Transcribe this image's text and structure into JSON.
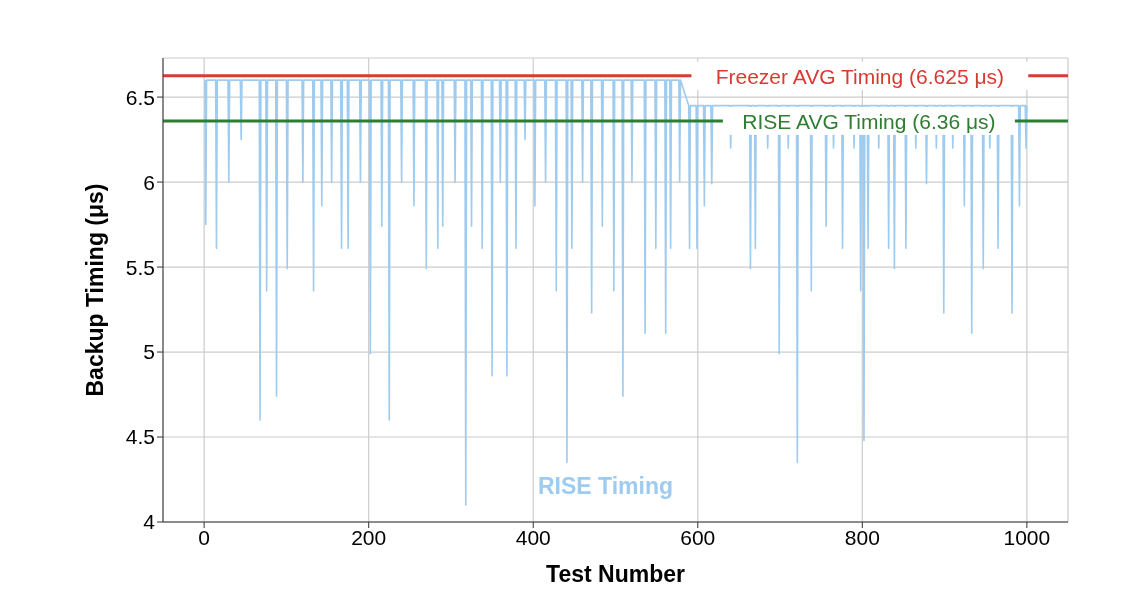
{
  "chart_data": {
    "type": "line",
    "xlabel": "Test Number",
    "ylabel": "Backup Timing (μs)",
    "xlim": [
      -50,
      1050
    ],
    "xticks": [
      0,
      200,
      400,
      600,
      800,
      1000
    ],
    "ylim": [
      4,
      6.73
    ],
    "yticks": [
      4,
      4.5,
      5,
      5.5,
      6,
      6.5
    ],
    "grid": true,
    "marker": "none",
    "line_style": "solid",
    "ref_lines": [
      {
        "axis": "y",
        "value": 6.625,
        "label": "Freezer AVG Timing (6.625 μs)",
        "color": "#d93a32"
      },
      {
        "axis": "y",
        "value": 6.36,
        "label": "RISE AVG Timing (6.36 μs)",
        "color": "#2e7d32"
      }
    ],
    "series": [
      {
        "name": "RISE Timing",
        "color": "#9ecbf0",
        "x": [
          1,
          2,
          3,
          14,
          15,
          16,
          29,
          30,
          31,
          44,
          45,
          46,
          67,
          68,
          69,
          75,
          76,
          77,
          87,
          88,
          89,
          100,
          101,
          102,
          119,
          120,
          121,
          132,
          133,
          134,
          142,
          143,
          144,
          154,
          155,
          156,
          166,
          167,
          168,
          174,
          175,
          176,
          189,
          190,
          191,
          201,
          202,
          203,
          215,
          216,
          217,
          224,
          225,
          226,
          239,
          240,
          241,
          254,
          255,
          256,
          269,
          270,
          271,
          283,
          284,
          285,
          289,
          290,
          291,
          304,
          305,
          306,
          317,
          318,
          319,
          324,
          325,
          326,
          337,
          338,
          339,
          349,
          350,
          351,
          359,
          360,
          361,
          367,
          368,
          369,
          378,
          379,
          380,
          389,
          390,
          391,
          401,
          402,
          403,
          414,
          415,
          416,
          427,
          428,
          429,
          440,
          441,
          442,
          446,
          447,
          448,
          459,
          460,
          461,
          470,
          471,
          472,
          483,
          484,
          485,
          497,
          498,
          499,
          508,
          509,
          510,
          519,
          520,
          521,
          535,
          536,
          537,
          548,
          549,
          550,
          560,
          561,
          562,
          566,
          567,
          568,
          577,
          578,
          579,
          589,
          590,
          591,
          598,
          599,
          600,
          607,
          608,
          609,
          616,
          617,
          618,
          639,
          640,
          641,
          663,
          664,
          665,
          669,
          670,
          671,
          684,
          685,
          686,
          698,
          699,
          700,
          709,
          710,
          711,
          720,
          721,
          722,
          737,
          738,
          739,
          755,
          756,
          757,
          764,
          765,
          766,
          775,
          776,
          777,
          789,
          790,
          791,
          797,
          798,
          799,
          801,
          802,
          803,
          806,
          807,
          808,
          819,
          820,
          821,
          831,
          832,
          833,
          838,
          839,
          840,
          852,
          853,
          854,
          864,
          865,
          866,
          877,
          878,
          879,
          889,
          890,
          891,
          898,
          899,
          900,
          909,
          910,
          911,
          923,
          924,
          925,
          932,
          933,
          934,
          946,
          947,
          948,
          954,
          955,
          956,
          964,
          965,
          966,
          981,
          982,
          983,
          990,
          991,
          992,
          998,
          999,
          1000
        ],
        "values": [
          6.6,
          5.75,
          6.6,
          6.6,
          5.61,
          6.6,
          6.6,
          6.0,
          6.6,
          6.6,
          6.25,
          6.6,
          6.6,
          4.6,
          6.6,
          6.6,
          5.36,
          6.6,
          6.6,
          4.74,
          6.6,
          6.6,
          5.49,
          6.6,
          6.6,
          6.0,
          6.6,
          6.6,
          5.36,
          6.6,
          6.6,
          5.86,
          6.6,
          6.6,
          6.0,
          6.6,
          6.6,
          5.61,
          6.6,
          6.6,
          5.61,
          6.6,
          6.6,
          6.0,
          6.6,
          6.6,
          4.99,
          6.6,
          6.6,
          5.74,
          6.6,
          6.6,
          4.6,
          6.6,
          6.6,
          6.0,
          6.6,
          6.6,
          5.86,
          6.6,
          6.6,
          5.49,
          6.6,
          6.6,
          5.61,
          6.6,
          6.6,
          5.74,
          6.6,
          6.6,
          6.0,
          6.6,
          6.6,
          4.1,
          6.6,
          6.6,
          5.74,
          6.6,
          6.6,
          5.61,
          6.6,
          6.6,
          4.86,
          6.6,
          6.6,
          6.0,
          6.6,
          6.6,
          4.86,
          6.6,
          6.6,
          5.61,
          6.6,
          6.6,
          6.25,
          6.6,
          6.6,
          5.86,
          6.6,
          6.6,
          6.0,
          6.6,
          6.6,
          5.36,
          6.6,
          6.6,
          4.35,
          6.6,
          6.6,
          5.61,
          6.6,
          6.6,
          6.0,
          6.6,
          6.6,
          5.23,
          6.6,
          6.6,
          5.74,
          6.6,
          6.6,
          5.36,
          6.6,
          6.6,
          4.74,
          6.6,
          6.6,
          6.0,
          6.6,
          6.6,
          5.11,
          6.6,
          6.6,
          5.61,
          6.6,
          6.6,
          5.11,
          6.6,
          6.6,
          5.61,
          6.6,
          6.6,
          6.0,
          6.6,
          6.45,
          5.61,
          6.45,
          6.45,
          5.61,
          6.45,
          6.45,
          5.86,
          6.45,
          6.45,
          5.99,
          6.45,
          6.45,
          6.2,
          6.45,
          6.45,
          5.49,
          6.45,
          6.45,
          5.61,
          6.45,
          6.45,
          6.2,
          6.45,
          6.45,
          4.99,
          6.45,
          6.45,
          6.2,
          6.45,
          6.45,
          4.35,
          6.45,
          6.45,
          5.36,
          6.45,
          6.45,
          5.74,
          6.45,
          6.45,
          6.2,
          6.45,
          6.45,
          5.61,
          6.45,
          6.45,
          6.2,
          6.45,
          6.45,
          5.36,
          6.45,
          6.45,
          4.48,
          6.45,
          6.45,
          5.61,
          6.45,
          6.45,
          6.2,
          6.45,
          6.45,
          5.61,
          6.45,
          6.45,
          5.49,
          6.45,
          6.45,
          5.61,
          6.45,
          6.45,
          6.2,
          6.45,
          6.45,
          5.99,
          6.45,
          6.45,
          6.2,
          6.45,
          6.45,
          5.23,
          6.45,
          6.45,
          6.2,
          6.45,
          6.45,
          5.86,
          6.45,
          6.45,
          5.11,
          6.45,
          6.45,
          5.49,
          6.45,
          6.45,
          6.2,
          6.45,
          6.45,
          5.61,
          6.45,
          6.45,
          5.23,
          6.45,
          6.45,
          5.86,
          6.45,
          6.45,
          6.2,
          6.45
        ]
      }
    ]
  }
}
